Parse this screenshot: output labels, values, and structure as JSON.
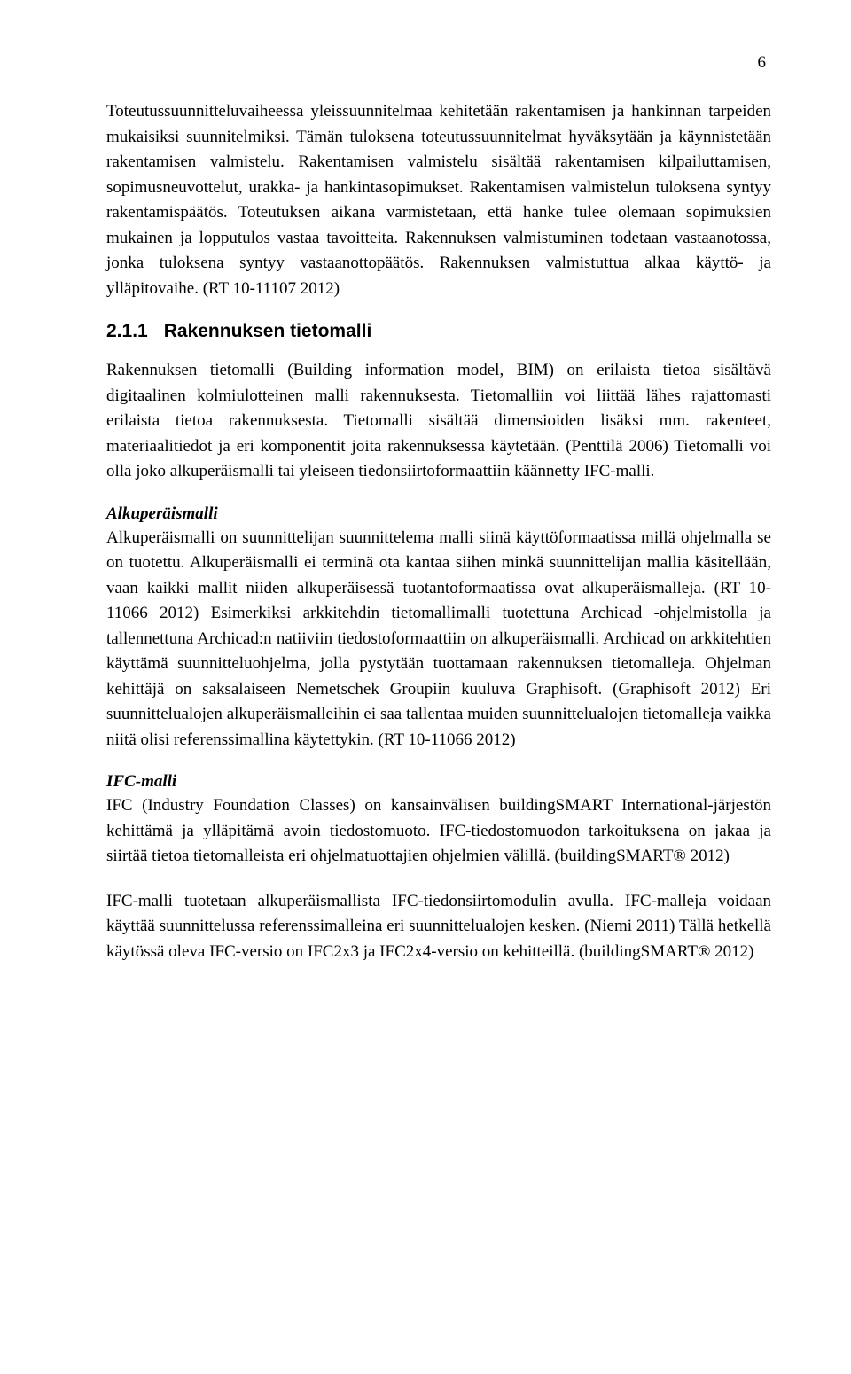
{
  "page": {
    "number": "6"
  },
  "paragraphs": {
    "p1": "Toteutussuunnitteluvaiheessa yleissuunnitelmaa kehitetään rakentamisen ja hankinnan tarpeiden mukaisiksi suunnitelmiksi. Tämän tuloksena toteutussuunnitelmat hyväksytään ja käynnistetään rakentamisen valmistelu. Rakentamisen valmistelu sisältää rakentamisen kilpailuttamisen, sopimusneuvottelut, urakka- ja hankintasopimukset. Rakentamisen valmistelun tuloksena syntyy rakentamispäätös. Toteutuksen aikana varmistetaan, että hanke tulee olemaan sopimuksien mukainen ja lopputulos vastaa tavoitteita. Rakennuksen valmistuminen todetaan vastaanotossa, jonka tuloksena syntyy vastaanottopäätös. Rakennuksen valmistuttua alkaa käyttö- ja ylläpitovaihe. (RT 10-11107 2012)",
    "p2": "Rakennuksen tietomalli (Building information model, BIM) on erilaista tietoa sisältävä digitaalinen kolmiulotteinen malli rakennuksesta. Tietomalliin voi liittää lähes rajattomasti erilaista tietoa rakennuksesta. Tietomalli sisältää dimensioiden lisäksi mm. rakenteet, materiaalitiedot ja eri komponentit joita rakennuksessa käytetään. (Penttilä 2006) Tietomalli voi olla joko alkuperäismalli tai yleiseen tiedonsiirtoformaattiin käännetty IFC-malli.",
    "p3": "Alkuperäismalli on suunnittelijan suunnittelema malli siinä käyttöformaatissa millä ohjelmalla se on tuotettu. Alkuperäismalli ei terminä ota kantaa siihen minkä suunnittelijan mallia käsitellään, vaan kaikki mallit niiden alkuperäisessä tuotantoformaatissa ovat alkuperäismalleja. (RT 10-11066 2012) Esimerkiksi arkkitehdin tietomallimalli tuotettuna Archicad -ohjelmistolla ja tallennettuna Archicad:n natiiviin tiedostoformaattiin on alkuperäismalli. Archicad on arkkitehtien käyttämä suunnitteluohjelma, jolla pystytään tuottamaan rakennuksen tietomalleja. Ohjelman kehittäjä on saksalaiseen Nemetschek Groupiin kuuluva Graphisoft. (Graphisoft 2012) Eri suunnittelualojen alkuperäismalleihin ei saa tallentaa muiden suunnittelualojen tietomalleja vaikka niitä olisi referenssimallina käytettykin. (RT 10-11066 2012)",
    "p4": "IFC (Industry Foundation Classes) on kansainvälisen buildingSMART International-järjestön kehittämä ja ylläpitämä avoin tiedostomuoto. IFC-tiedostomuodon tarkoituksena on jakaa ja siirtää tietoa tietomalleista eri ohjelmatuottajien ohjelmien välillä. (buildingSMART® 2012)",
    "p5": "IFC-malli tuotetaan alkuperäismallista IFC-tiedonsiirtomodulin avulla. IFC-malleja voidaan käyttää suunnittelussa referenssimalleina eri suunnittelualojen kesken. (Niemi 2011) Tällä hetkellä käytössä oleva IFC-versio on IFC2x3 ja IFC2x4-versio on kehitteillä. (buildingSMART® 2012)"
  },
  "headings": {
    "section_num": "2.1.1",
    "section_title": "Rakennuksen tietomalli",
    "sub1": "Alkuperäismalli",
    "sub2": "IFC-malli"
  }
}
